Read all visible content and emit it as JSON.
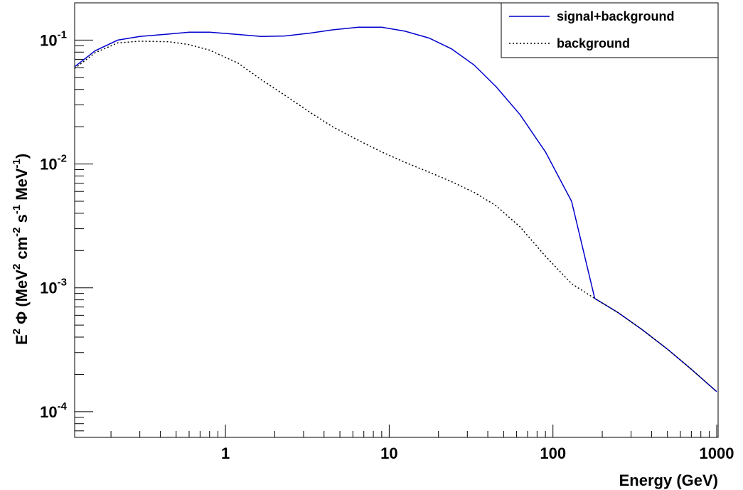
{
  "chart_data": {
    "type": "line",
    "xlabel": "Energy (GeV)",
    "ylabel": {
      "parts": [
        {
          "t": "E",
          "s": "n"
        },
        {
          "t": "2",
          "s": "sup"
        },
        {
          "t": " Φ (MeV",
          "s": "n"
        },
        {
          "t": "2",
          "s": "sup"
        },
        {
          "t": " cm",
          "s": "n"
        },
        {
          "t": "-2",
          "s": "sup"
        },
        {
          "t": " s",
          "s": "n"
        },
        {
          "t": "-1",
          "s": "sup"
        },
        {
          "t": " MeV",
          "s": "n"
        },
        {
          "t": "-1",
          "s": "sup"
        },
        {
          "t": ")",
          "s": "n"
        }
      ]
    },
    "x_scale": "log",
    "y_scale": "log",
    "xlim": [
      0.12,
      1020
    ],
    "ylim": [
      6.2e-05,
      0.2
    ],
    "grid": false,
    "legend_position": "top-right",
    "x_ticks": [
      {
        "value": 1,
        "label": "1"
      },
      {
        "value": 10,
        "label": "10"
      },
      {
        "value": 100,
        "label": "100"
      },
      {
        "value": 1000,
        "label": "1000"
      }
    ],
    "y_ticks": [
      {
        "value": 0.1,
        "base": "10",
        "exp": "-1"
      },
      {
        "value": 0.01,
        "base": "10",
        "exp": "-2"
      },
      {
        "value": 0.001,
        "base": "10",
        "exp": "-3"
      },
      {
        "value": 0.0001,
        "base": "10",
        "exp": "-4"
      }
    ],
    "series": [
      {
        "name": "signal+background",
        "color": "#0000cc",
        "dash": "none",
        "x": [
          0.12,
          0.16,
          0.22,
          0.3,
          0.45,
          0.6,
          0.8,
          1.2,
          1.65,
          2.3,
          3.3,
          4.5,
          6.5,
          9.0,
          12.5,
          17.5,
          24,
          33,
          45,
          63,
          90,
          130,
          180,
          250,
          350,
          500,
          700,
          1000
        ],
        "y": [
          0.061,
          0.082,
          0.1,
          0.107,
          0.112,
          0.116,
          0.116,
          0.111,
          0.107,
          0.108,
          0.114,
          0.121,
          0.127,
          0.127,
          0.118,
          0.104,
          0.085,
          0.063,
          0.042,
          0.025,
          0.0125,
          0.005,
          0.00082,
          0.00063,
          0.00046,
          0.00032,
          0.00022,
          0.000145
        ]
      },
      {
        "name": "background",
        "color": "#000000",
        "dash": "dotted",
        "x": [
          0.12,
          0.16,
          0.22,
          0.3,
          0.45,
          0.6,
          0.8,
          1.2,
          1.65,
          2.3,
          3.3,
          4.5,
          6.5,
          9.0,
          12.5,
          17.5,
          24,
          33,
          45,
          63,
          90,
          130,
          180,
          250,
          350,
          500,
          700,
          1000
        ],
        "y": [
          0.059,
          0.079,
          0.095,
          0.098,
          0.097,
          0.092,
          0.083,
          0.065,
          0.048,
          0.036,
          0.026,
          0.02,
          0.0155,
          0.0125,
          0.0103,
          0.0086,
          0.0072,
          0.0059,
          0.0046,
          0.0031,
          0.0018,
          0.00108,
          0.00082,
          0.00063,
          0.00046,
          0.00032,
          0.00022,
          0.000145
        ]
      }
    ]
  }
}
